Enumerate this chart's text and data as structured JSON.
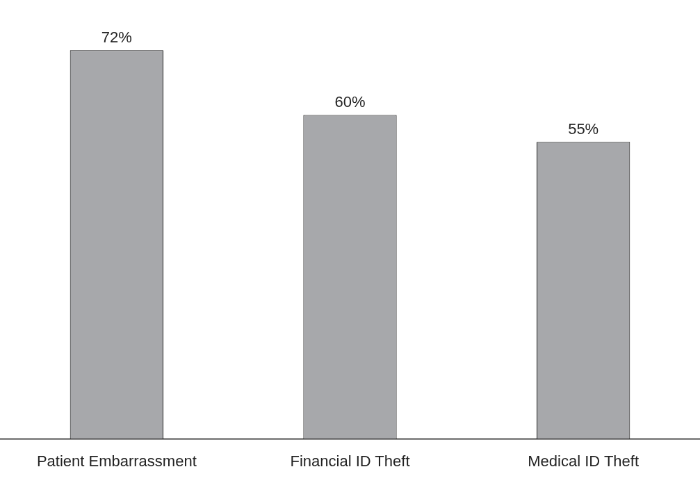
{
  "chart_data": {
    "type": "bar",
    "categories": [
      "Patient Embarrassment",
      "Financial ID Theft",
      "Medical ID Theft"
    ],
    "values": [
      72,
      60,
      55
    ],
    "value_labels": [
      "72%",
      "60%",
      "55%"
    ],
    "color": "#a7a8ab",
    "grid": false,
    "legend": false
  }
}
